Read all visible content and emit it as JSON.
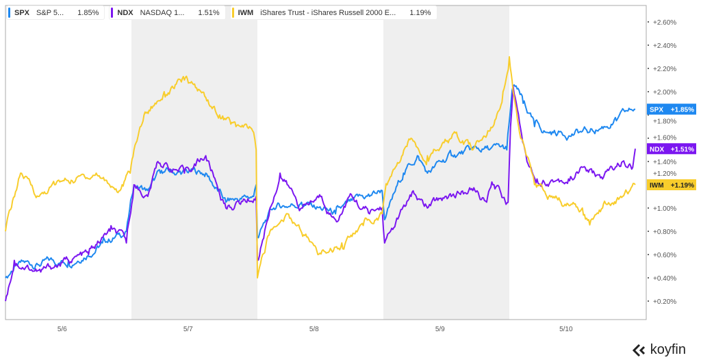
{
  "legend": [
    {
      "symbol": "SPX",
      "name": "S&P 5...",
      "change": "1.85%",
      "color": "#1e88f0"
    },
    {
      "symbol": "NDX",
      "name": "NASDAQ 1...",
      "change": "1.51%",
      "color": "#7b16f0"
    },
    {
      "symbol": "IWM",
      "name": "iShares Trust - iShares Russell 2000 E...",
      "change": "1.19%",
      "color": "#f8cd2c"
    }
  ],
  "logo": "koyfin",
  "chart_data": {
    "type": "line",
    "x_unit": "trading day index (0 = start of 5/6, 5 = end of 5/10)",
    "categories": [
      "5/6",
      "5/7",
      "5/8",
      "5/9",
      "5/10"
    ],
    "shaded_days": [
      "5/7",
      "5/9"
    ],
    "ylim": [
      0,
      2.7
    ],
    "yticks": [
      0.2,
      0.4,
      0.6,
      0.8,
      1.0,
      1.2,
      1.4,
      1.6,
      1.8,
      2.0,
      2.2,
      2.4,
      2.6
    ],
    "ytick_labels": [
      "+0.20%",
      "+0.40%",
      "+0.60%",
      "+0.80%",
      "+1.00%",
      "+1.20%",
      "+1.40%",
      "+1.60%",
      "+1.80%",
      "+2.00%",
      "+2.20%",
      "+2.40%",
      "+2.60%"
    ],
    "series": [
      {
        "name": "SPX",
        "last_label": "+1.85%",
        "color": "#1e88f0",
        "points": [
          [
            0,
            0.4
          ],
          [
            0.07,
            0.5
          ],
          [
            0.5,
            0.55
          ],
          [
            0.77,
            0.7
          ],
          [
            0.96,
            0.8
          ],
          [
            1.02,
            1.2
          ],
          [
            1.13,
            1.15
          ],
          [
            1.23,
            1.3
          ],
          [
            1.59,
            1.3
          ],
          [
            1.75,
            1.05
          ],
          [
            1.97,
            1.1
          ],
          [
            1.99,
            1.2
          ],
          [
            2.0,
            0.75
          ],
          [
            2.13,
            1.0
          ],
          [
            2.35,
            1.05
          ],
          [
            2.62,
            0.95
          ],
          [
            2.89,
            1.1
          ],
          [
            2.99,
            1.15
          ],
          [
            3.01,
            0.9
          ],
          [
            3.16,
            1.3
          ],
          [
            3.27,
            1.45
          ],
          [
            3.35,
            1.3
          ],
          [
            3.54,
            1.45
          ],
          [
            3.76,
            1.5
          ],
          [
            3.98,
            1.5
          ],
          [
            4.03,
            2.05
          ],
          [
            4.11,
            1.9
          ],
          [
            4.2,
            1.7
          ],
          [
            4.3,
            1.65
          ],
          [
            4.63,
            1.65
          ],
          [
            4.85,
            1.75
          ],
          [
            5.0,
            1.85
          ]
        ]
      },
      {
        "name": "NDX",
        "last_label": "+1.51%",
        "color": "#7b16f0",
        "points": [
          [
            0,
            0.2
          ],
          [
            0.07,
            0.55
          ],
          [
            0.28,
            0.45
          ],
          [
            0.5,
            0.55
          ],
          [
            0.66,
            0.6
          ],
          [
            0.83,
            0.8
          ],
          [
            0.96,
            0.7
          ],
          [
            1.02,
            1.2
          ],
          [
            1.13,
            1.1
          ],
          [
            1.21,
            1.4
          ],
          [
            1.42,
            1.3
          ],
          [
            1.59,
            1.45
          ],
          [
            1.75,
            1.0
          ],
          [
            1.99,
            1.1
          ],
          [
            2.0,
            0.55
          ],
          [
            2.1,
            1.0
          ],
          [
            2.18,
            1.3
          ],
          [
            2.35,
            1.0
          ],
          [
            2.51,
            1.1
          ],
          [
            2.62,
            0.9
          ],
          [
            2.73,
            1.1
          ],
          [
            2.89,
            0.95
          ],
          [
            2.99,
            1.0
          ],
          [
            3.01,
            0.7
          ],
          [
            3.22,
            1.1
          ],
          [
            3.35,
            1.0
          ],
          [
            3.49,
            1.1
          ],
          [
            3.71,
            1.15
          ],
          [
            3.82,
            1.05
          ],
          [
            3.87,
            1.2
          ],
          [
            3.99,
            1.05
          ],
          [
            4.01,
            1.7
          ],
          [
            4.03,
            2.05
          ],
          [
            4.14,
            1.4
          ],
          [
            4.22,
            1.25
          ],
          [
            4.47,
            1.25
          ],
          [
            4.58,
            1.35
          ],
          [
            4.74,
            1.25
          ],
          [
            4.9,
            1.4
          ],
          [
            4.98,
            1.35
          ],
          [
            5.0,
            1.51
          ]
        ]
      },
      {
        "name": "IWM",
        "last_label": "+1.19%",
        "color": "#f8cd2c",
        "points": [
          [
            0,
            0.8
          ],
          [
            0.12,
            1.3
          ],
          [
            0.26,
            1.1
          ],
          [
            0.39,
            1.2
          ],
          [
            0.72,
            1.3
          ],
          [
            0.91,
            1.15
          ],
          [
            0.99,
            1.3
          ],
          [
            1.02,
            1.5
          ],
          [
            1.1,
            1.8
          ],
          [
            1.26,
            2.0
          ],
          [
            1.42,
            2.1
          ],
          [
            1.59,
            1.95
          ],
          [
            1.7,
            1.8
          ],
          [
            1.83,
            1.7
          ],
          [
            1.97,
            1.65
          ],
          [
            1.99,
            1.5
          ],
          [
            2.0,
            0.4
          ],
          [
            2.1,
            0.8
          ],
          [
            2.24,
            0.95
          ],
          [
            2.4,
            0.75
          ],
          [
            2.48,
            0.6
          ],
          [
            2.67,
            0.7
          ],
          [
            2.84,
            0.85
          ],
          [
            2.99,
            0.95
          ],
          [
            3.03,
            1.2
          ],
          [
            3.22,
            1.6
          ],
          [
            3.35,
            1.45
          ],
          [
            3.54,
            1.6
          ],
          [
            3.71,
            1.5
          ],
          [
            3.87,
            1.7
          ],
          [
            3.95,
            2.0
          ],
          [
            4.0,
            2.3
          ],
          [
            4.03,
            2.0
          ],
          [
            4.09,
            1.6
          ],
          [
            4.2,
            1.2
          ],
          [
            4.41,
            1.05
          ],
          [
            4.58,
            1.0
          ],
          [
            4.63,
            0.9
          ],
          [
            4.74,
            1.0
          ],
          [
            4.9,
            1.1
          ],
          [
            5.0,
            1.2
          ]
        ]
      }
    ]
  }
}
